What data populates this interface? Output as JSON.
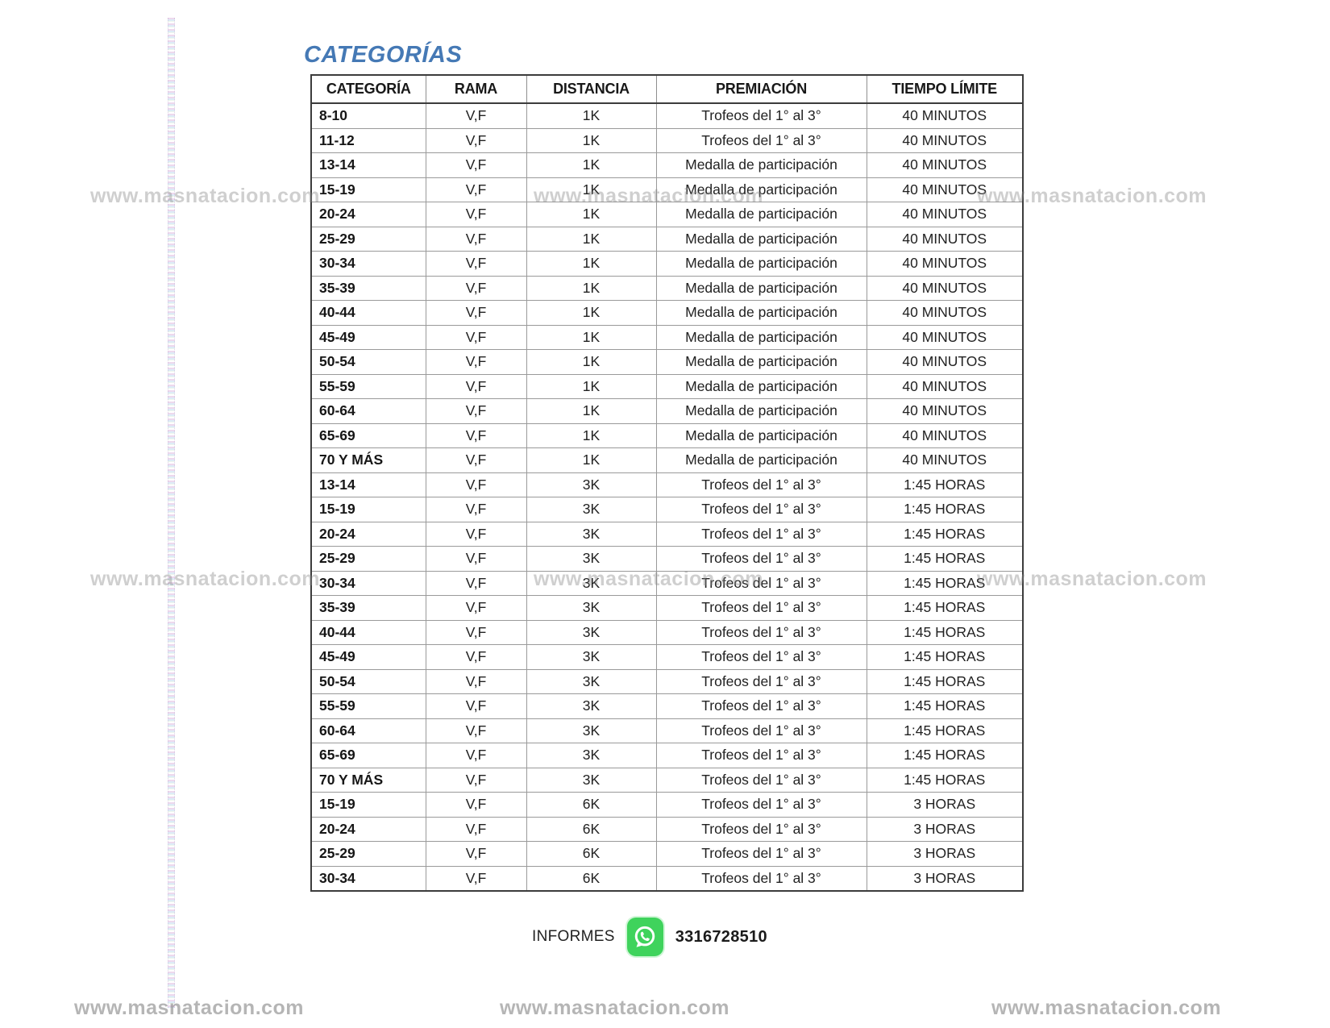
{
  "title": "CATEGORÍAS",
  "table": {
    "headers": [
      "CATEGORÍA",
      "RAMA",
      "DISTANCIA",
      "PREMIACIÓN",
      "TIEMPO LÍMITE"
    ],
    "rows": [
      [
        "8-10",
        "V,F",
        "1K",
        "Trofeos del 1° al 3°",
        "40 MINUTOS"
      ],
      [
        "11-12",
        "V,F",
        "1K",
        "Trofeos del 1° al 3°",
        "40 MINUTOS"
      ],
      [
        "13-14",
        "V,F",
        "1K",
        "Medalla de participación",
        "40 MINUTOS"
      ],
      [
        "15-19",
        "V,F",
        "1K",
        "Medalla de participación",
        "40 MINUTOS"
      ],
      [
        "20-24",
        "V,F",
        "1K",
        "Medalla de participación",
        "40 MINUTOS"
      ],
      [
        "25-29",
        "V,F",
        "1K",
        "Medalla de participación",
        "40 MINUTOS"
      ],
      [
        "30-34",
        "V,F",
        "1K",
        "Medalla de participación",
        "40 MINUTOS"
      ],
      [
        "35-39",
        "V,F",
        "1K",
        "Medalla de participación",
        "40 MINUTOS"
      ],
      [
        "40-44",
        "V,F",
        "1K",
        "Medalla de participación",
        "40 MINUTOS"
      ],
      [
        "45-49",
        "V,F",
        "1K",
        "Medalla de participación",
        "40 MINUTOS"
      ],
      [
        "50-54",
        "V,F",
        "1K",
        "Medalla de participación",
        "40 MINUTOS"
      ],
      [
        "55-59",
        "V,F",
        "1K",
        "Medalla de participación",
        "40 MINUTOS"
      ],
      [
        "60-64",
        "V,F",
        "1K",
        "Medalla de participación",
        "40 MINUTOS"
      ],
      [
        "65-69",
        "V,F",
        "1K",
        "Medalla de participación",
        "40 MINUTOS"
      ],
      [
        "70 Y MÁS",
        "V,F",
        "1K",
        "Medalla de participación",
        "40 MINUTOS"
      ],
      [
        "13-14",
        "V,F",
        "3K",
        "Trofeos del 1° al 3°",
        "1:45 HORAS"
      ],
      [
        "15-19",
        "V,F",
        "3K",
        "Trofeos del 1° al 3°",
        "1:45 HORAS"
      ],
      [
        "20-24",
        "V,F",
        "3K",
        "Trofeos del 1° al 3°",
        "1:45 HORAS"
      ],
      [
        "25-29",
        "V,F",
        "3K",
        "Trofeos del 1° al 3°",
        "1:45 HORAS"
      ],
      [
        "30-34",
        "V,F",
        "3K",
        "Trofeos del 1° al 3°",
        "1:45 HORAS"
      ],
      [
        "35-39",
        "V,F",
        "3K",
        "Trofeos del 1° al 3°",
        "1:45 HORAS"
      ],
      [
        "40-44",
        "V,F",
        "3K",
        "Trofeos del 1° al 3°",
        "1:45 HORAS"
      ],
      [
        "45-49",
        "V,F",
        "3K",
        "Trofeos del 1° al 3°",
        "1:45 HORAS"
      ],
      [
        "50-54",
        "V,F",
        "3K",
        "Trofeos del 1° al 3°",
        "1:45 HORAS"
      ],
      [
        "55-59",
        "V,F",
        "3K",
        "Trofeos del 1° al 3°",
        "1:45 HORAS"
      ],
      [
        "60-64",
        "V,F",
        "3K",
        "Trofeos del 1° al 3°",
        "1:45 HORAS"
      ],
      [
        "65-69",
        "V,F",
        "3K",
        "Trofeos del 1° al 3°",
        "1:45 HORAS"
      ],
      [
        "70 Y MÁS",
        "V,F",
        "3K",
        "Trofeos del 1° al 3°",
        "1:45 HORAS"
      ],
      [
        "15-19",
        "V,F",
        "6K",
        "Trofeos del 1° al 3°",
        "3 HORAS"
      ],
      [
        "20-24",
        "V,F",
        "6K",
        "Trofeos del 1° al 3°",
        "3 HORAS"
      ],
      [
        "25-29",
        "V,F",
        "6K",
        "Trofeos del 1° al 3°",
        "3 HORAS"
      ],
      [
        "30-34",
        "V,F",
        "6K",
        "Trofeos del 1° al 3°",
        "3 HORAS"
      ]
    ]
  },
  "footer": {
    "label": "INFORMES",
    "phone": "3316728510",
    "whatsapp_icon": "whatsapp-icon"
  },
  "watermark": {
    "text": "www.masnatacion.com",
    "color": "#d2d2d2"
  },
  "colors": {
    "title_blue": "#4579b5",
    "whatsapp_green": "#3fd35c",
    "text_black": "#1f1f1f"
  }
}
